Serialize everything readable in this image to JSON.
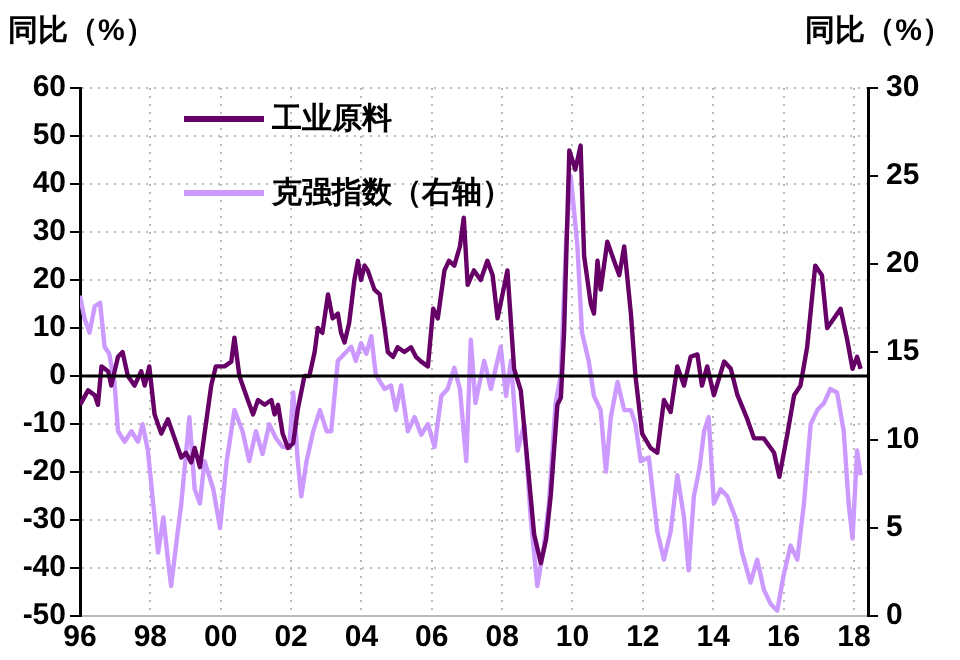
{
  "chart_data": {
    "type": "line",
    "ylabel": "同比（%）",
    "y2label": "同比（%）",
    "xlim": [
      1996,
      2018.4
    ],
    "xticks": [
      {
        "value": 1996,
        "label": "96"
      },
      {
        "value": 1998,
        "label": "98"
      },
      {
        "value": 2000,
        "label": "00"
      },
      {
        "value": 2002,
        "label": "02"
      },
      {
        "value": 2004,
        "label": "04"
      },
      {
        "value": 2006,
        "label": "06"
      },
      {
        "value": 2008,
        "label": "08"
      },
      {
        "value": 2010,
        "label": "10"
      },
      {
        "value": 2012,
        "label": "12"
      },
      {
        "value": 2014,
        "label": "14"
      },
      {
        "value": 2016,
        "label": "16"
      },
      {
        "value": 2018,
        "label": "18"
      }
    ],
    "ylim": [
      -50,
      60
    ],
    "yticks": [
      -50,
      -40,
      -30,
      -20,
      -10,
      0,
      10,
      20,
      30,
      40,
      50,
      60
    ],
    "y2lim": [
      0,
      30
    ],
    "y2ticks": [
      0,
      5,
      10,
      15,
      20,
      25,
      30
    ],
    "grid": true,
    "legend": "top",
    "ref_lines": [
      {
        "axis": "y",
        "value": 0,
        "color": "#000000"
      }
    ],
    "series": [
      {
        "name": "工业原料",
        "color": "#660066",
        "x": [
          1996.0,
          1996.23,
          1996.42,
          1996.51,
          1996.61,
          1996.8,
          1996.89,
          1997.08,
          1997.21,
          1997.36,
          1997.55,
          1997.74,
          1997.84,
          1997.97,
          1998.12,
          1998.31,
          1998.5,
          1998.69,
          1998.88,
          1999.01,
          1999.16,
          1999.26,
          1999.41,
          1999.54,
          1999.73,
          1999.86,
          2000.11,
          2000.3,
          2000.39,
          2000.53,
          2000.77,
          2000.92,
          2001.06,
          2001.25,
          2001.44,
          2001.53,
          2001.63,
          2001.76,
          2001.91,
          2002.06,
          2002.19,
          2002.38,
          2002.52,
          2002.67,
          2002.76,
          2002.89,
          2003.05,
          2003.18,
          2003.33,
          2003.42,
          2003.52,
          2003.65,
          2003.8,
          2003.9,
          2003.99,
          2004.09,
          2004.18,
          2004.37,
          2004.52,
          2004.66,
          2004.75,
          2004.9,
          2005.03,
          2005.22,
          2005.41,
          2005.55,
          2005.7,
          2005.89,
          2006.04,
          2006.17,
          2006.36,
          2006.49,
          2006.64,
          2006.8,
          2006.91,
          2007.02,
          2007.2,
          2007.39,
          2007.58,
          2007.73,
          2007.87,
          2008.15,
          2008.34,
          2008.53,
          2008.72,
          2008.91,
          2009.1,
          2009.25,
          2009.38,
          2009.57,
          2009.67,
          2009.76,
          2009.91,
          2010.08,
          2010.23,
          2010.33,
          2010.52,
          2010.61,
          2010.71,
          2010.8,
          2010.99,
          2011.18,
          2011.33,
          2011.47,
          2011.66,
          2011.79,
          2011.98,
          2012.22,
          2012.41,
          2012.6,
          2012.79,
          2012.98,
          2013.17,
          2013.36,
          2013.55,
          2013.68,
          2013.83,
          2014.02,
          2014.31,
          2014.5,
          2014.69,
          2014.97,
          2015.16,
          2015.44,
          2015.73,
          2015.88,
          2016.11,
          2016.3,
          2016.48,
          2016.67,
          2016.9,
          2017.09,
          2017.24,
          2017.43,
          2017.62,
          2017.81,
          2017.96,
          2018.09,
          2018.19
        ],
        "values": [
          -6,
          -3,
          -4,
          -6,
          2,
          1,
          -2,
          4,
          5,
          0,
          -2,
          1,
          -2,
          2,
          -8,
          -12,
          -9,
          -13,
          -17,
          -16,
          -18,
          -15,
          -19,
          -12,
          -2,
          2,
          2,
          3,
          8,
          0,
          -5,
          -8,
          -5,
          -6,
          -5,
          -8,
          -6,
          -12,
          -15,
          -14,
          -7,
          0,
          0,
          5,
          10,
          9,
          17,
          12,
          13,
          9,
          7,
          11,
          20,
          24,
          20,
          23,
          22,
          18,
          17,
          10,
          5,
          4,
          6,
          5,
          6,
          4,
          3,
          2,
          14,
          12,
          22,
          24,
          23,
          27,
          33,
          19,
          22,
          20,
          24,
          21,
          12,
          22,
          1.5,
          -3,
          -18,
          -33,
          -39,
          -34,
          -25,
          -6,
          -4.5,
          9,
          47,
          43,
          48,
          25,
          15,
          13,
          24,
          18,
          28,
          24,
          21,
          27,
          13,
          0,
          -12,
          -15,
          -16,
          -5,
          -7.5,
          2,
          -2,
          4,
          4.5,
          -2,
          2,
          -4,
          3,
          1.5,
          -4,
          -9,
          -13,
          -13,
          -16,
          -21,
          -12,
          -4,
          -2,
          6,
          23,
          21,
          10,
          12,
          14,
          7.5,
          1.5,
          4,
          1.5
        ]
      },
      {
        "name": "克强指数（右轴）",
        "color": "#cc99ff",
        "axis": "y2",
        "x": [
          1996.0,
          1996.13,
          1996.27,
          1996.42,
          1996.57,
          1996.7,
          1996.83,
          1996.98,
          1997.08,
          1997.27,
          1997.46,
          1997.65,
          1997.78,
          1997.93,
          1998.08,
          1998.22,
          1998.37,
          1998.5,
          1998.59,
          1998.73,
          1998.88,
          1999.11,
          1999.26,
          1999.41,
          1999.54,
          1999.79,
          1999.98,
          2000.17,
          2000.39,
          2000.62,
          2000.81,
          2001.0,
          2001.19,
          2001.38,
          2001.57,
          2001.76,
          2001.95,
          2002.06,
          2002.19,
          2002.29,
          2002.44,
          2002.63,
          2002.82,
          2003.01,
          2003.14,
          2003.33,
          2003.52,
          2003.71,
          2003.84,
          2003.99,
          2004.14,
          2004.28,
          2004.41,
          2004.66,
          2004.84,
          2004.98,
          2005.13,
          2005.32,
          2005.51,
          2005.7,
          2005.89,
          2006.08,
          2006.27,
          2006.45,
          2006.64,
          2006.8,
          2006.98,
          2007.11,
          2007.24,
          2007.49,
          2007.68,
          2007.96,
          2008.11,
          2008.25,
          2008.44,
          2008.63,
          2008.81,
          2009.0,
          2009.19,
          2009.33,
          2009.52,
          2009.67,
          2009.82,
          2009.95,
          2010.14,
          2010.27,
          2010.46,
          2010.61,
          2010.8,
          2010.95,
          2011.09,
          2011.28,
          2011.47,
          2011.66,
          2011.79,
          2011.94,
          2012.17,
          2012.41,
          2012.6,
          2012.79,
          2012.98,
          2013.17,
          2013.3,
          2013.45,
          2013.61,
          2013.74,
          2013.87,
          2014.02,
          2014.21,
          2014.4,
          2014.63,
          2014.82,
          2015.06,
          2015.25,
          2015.44,
          2015.63,
          2015.82,
          2016.01,
          2016.2,
          2016.39,
          2016.58,
          2016.77,
          2016.96,
          2017.15,
          2017.33,
          2017.52,
          2017.71,
          2017.85,
          2017.96,
          2018.09,
          2018.19
        ],
        "values": [
          18.2,
          16.9,
          16.1,
          17.6,
          17.8,
          15.3,
          14.9,
          13.3,
          10.5,
          9.9,
          10.5,
          9.9,
          10.9,
          9.4,
          6.4,
          3.6,
          5.6,
          3.2,
          1.7,
          4.0,
          6.4,
          11.3,
          7.2,
          6.4,
          8.8,
          7.2,
          5.0,
          8.8,
          11.7,
          10.5,
          8.8,
          10.5,
          9.2,
          10.9,
          10.1,
          9.6,
          9.6,
          12.7,
          8.8,
          6.8,
          8.8,
          10.5,
          11.7,
          10.5,
          10.5,
          14.5,
          14.9,
          15.3,
          14.5,
          15.5,
          14.9,
          15.9,
          13.7,
          12.9,
          13.1,
          11.7,
          13.1,
          10.5,
          11.3,
          10.3,
          10.9,
          9.6,
          12.5,
          12.9,
          14.1,
          12.9,
          8.8,
          15.7,
          12.1,
          14.5,
          12.9,
          15.3,
          12.5,
          14.5,
          9.4,
          10.9,
          5.6,
          1.7,
          4.0,
          6.4,
          12.1,
          13.7,
          21.4,
          25.0,
          21.0,
          16.1,
          14.5,
          12.5,
          11.7,
          8.2,
          11.3,
          13.3,
          11.7,
          11.7,
          10.9,
          8.8,
          9.0,
          4.8,
          3.2,
          4.8,
          8.0,
          5.6,
          2.6,
          6.8,
          8.4,
          10.5,
          11.3,
          6.4,
          7.2,
          6.8,
          5.6,
          3.6,
          1.9,
          3.2,
          1.5,
          0.7,
          0.3,
          2.4,
          4.0,
          3.2,
          6.4,
          10.9,
          11.7,
          12.1,
          12.9,
          12.7,
          10.5,
          6.4,
          4.4,
          9.4,
          8.0
        ]
      }
    ]
  }
}
